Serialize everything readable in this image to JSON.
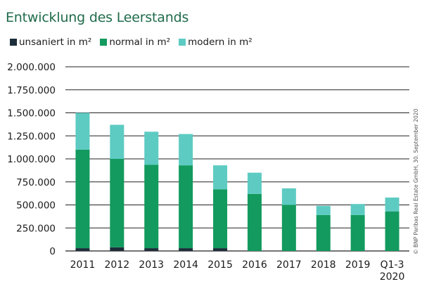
{
  "colors": {
    "unsaniert": "#1c2e3a",
    "normal": "#139a5e",
    "modern": "#5dcbc2",
    "title": "#1f6b4a",
    "grid": "#222222"
  },
  "chart_data": {
    "type": "bar",
    "stacked": true,
    "title": "Entwicklung des Leerstands",
    "categories": [
      "2011",
      "2012",
      "2013",
      "2014",
      "2015",
      "2016",
      "2017",
      "2018",
      "2019",
      "Q1-3 2020"
    ],
    "series": [
      {
        "name": "unsaniert in m²",
        "values": [
          30000,
          40000,
          30000,
          30000,
          30000,
          0,
          0,
          0,
          0,
          0
        ]
      },
      {
        "name": "normal in m²",
        "values": [
          1070000,
          960000,
          905000,
          900000,
          640000,
          620000,
          500000,
          390000,
          390000,
          430000
        ]
      },
      {
        "name": "modern in m²",
        "values": [
          400000,
          370000,
          360000,
          340000,
          260000,
          230000,
          180000,
          100000,
          120000,
          150000
        ]
      }
    ],
    "yticks": [
      "0",
      "250.000",
      "500.000",
      "750.000",
      "1.000.000",
      "1.250.000",
      "1.500.000",
      "1.750.000",
      "2.000.000"
    ],
    "ylim": [
      0,
      2000000
    ],
    "grid": true,
    "legend_position": "top-left",
    "source": "© BNP Paribas Real Estate GmbH, 30. September 2020"
  }
}
